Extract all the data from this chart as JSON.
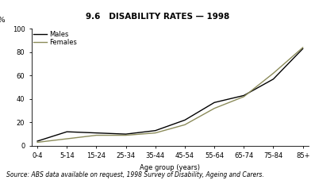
{
  "title": "9.6   DISABILITY RATES — 1998",
  "xlabel": "Age group (years)",
  "source": "Source: ABS data available on request, 1998 Survey of Disability, Ageing and Carers.",
  "categories": [
    "0-4",
    "5-14",
    "15-24",
    "25-34",
    "35-44",
    "45-54",
    "55-64",
    "65-74",
    "75-84",
    "85+"
  ],
  "males": [
    4,
    12,
    11,
    10,
    13,
    22,
    37,
    43,
    57,
    83
  ],
  "females": [
    3,
    6,
    9,
    9,
    11,
    18,
    32,
    42,
    62,
    84
  ],
  "males_color": "#000000",
  "females_color": "#8B8B5A",
  "ylim": [
    0,
    100
  ],
  "yticks": [
    0,
    20,
    40,
    60,
    80,
    100
  ],
  "background_color": "#ffffff",
  "title_fontsize": 7.5,
  "axis_fontsize": 6.0,
  "legend_fontsize": 6.0,
  "source_fontsize": 5.5,
  "pct_fontsize": 6.5,
  "linewidth": 1.0
}
